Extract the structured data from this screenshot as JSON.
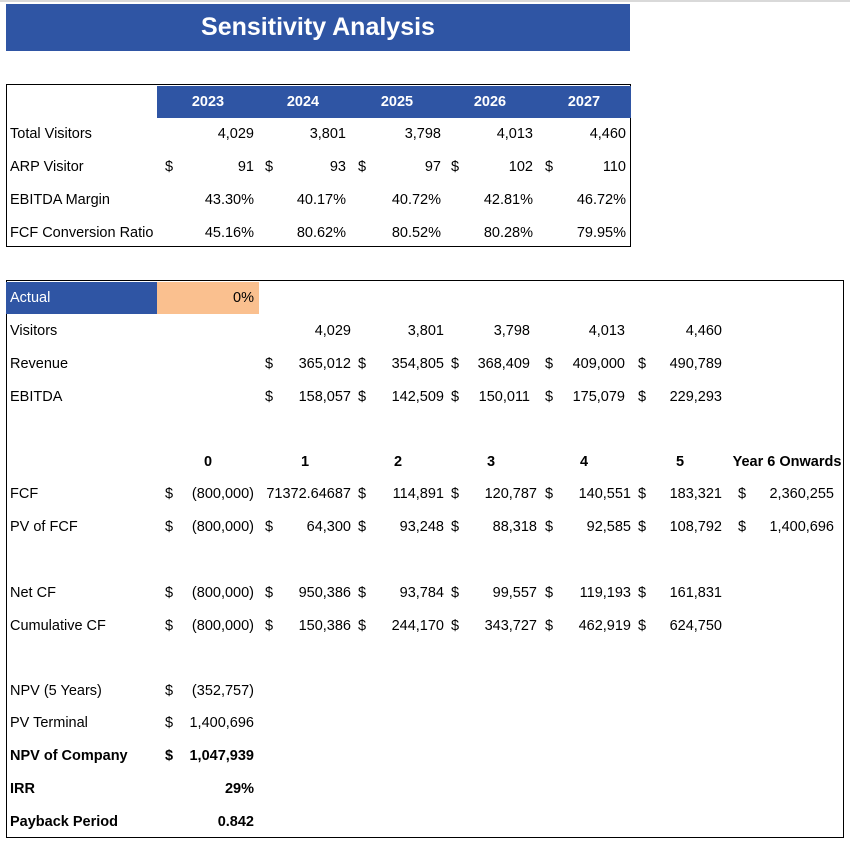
{
  "title": "Sensitivity Analysis",
  "currency": "$",
  "drivers": {
    "years": [
      "2023",
      "2024",
      "2025",
      "2026",
      "2027"
    ],
    "rows": [
      {
        "label": "Total Visitors",
        "currency": false,
        "values": [
          "4,029",
          "3,801",
          "3,798",
          "4,013",
          "4,460"
        ]
      },
      {
        "label": "ARP Visitor",
        "currency": true,
        "values": [
          "91",
          "93",
          "97",
          "102",
          "110"
        ]
      },
      {
        "label": "EBITDA Margin",
        "currency": false,
        "values": [
          "43.30%",
          "40.17%",
          "40.72%",
          "42.81%",
          "46.72%"
        ]
      },
      {
        "label": "FCF Conversion Ratio",
        "currency": false,
        "values": [
          "45.16%",
          "80.62%",
          "80.52%",
          "80.28%",
          "79.95%"
        ]
      }
    ]
  },
  "actual": {
    "label": "Actual",
    "value": "0%"
  },
  "operations": [
    {
      "label": "Visitors",
      "currency": false,
      "values": [
        "4,029",
        "3,801",
        "3,798",
        "4,013",
        "4,460"
      ]
    },
    {
      "label": "Revenue",
      "currency": true,
      "values": [
        "365,012",
        "354,805",
        "368,409",
        "409,000",
        "490,789"
      ]
    },
    {
      "label": "EBITDA",
      "currency": true,
      "values": [
        "158,057",
        "142,509",
        "150,011",
        "175,079",
        "229,293"
      ]
    }
  ],
  "periods": [
    "0",
    "1",
    "2",
    "3",
    "4",
    "5",
    "Year 6 Onwards"
  ],
  "cashflows": [
    {
      "label": "FCF",
      "values": [
        "(800,000)",
        "71372.64687",
        "114,891",
        "120,787",
        "140,551",
        "183,321",
        "2,360,255"
      ],
      "currency": [
        true,
        false,
        true,
        true,
        true,
        true,
        true
      ]
    },
    {
      "label": "PV of FCF",
      "values": [
        "(800,000)",
        "64,300",
        "93,248",
        "88,318",
        "92,585",
        "108,792",
        "1,400,696"
      ],
      "currency": [
        true,
        true,
        true,
        true,
        true,
        true,
        true
      ]
    },
    {
      "label": "Net CF",
      "values": [
        "(800,000)",
        "950,386",
        "93,784",
        "99,557",
        "119,193",
        "161,831"
      ],
      "currency": [
        true,
        true,
        true,
        true,
        true,
        true
      ]
    },
    {
      "label": "Cumulative CF",
      "values": [
        "(800,000)",
        "150,386",
        "244,170",
        "343,727",
        "462,919",
        "624,750"
      ],
      "currency": [
        true,
        true,
        true,
        true,
        true,
        true
      ]
    }
  ],
  "summary": [
    {
      "label": "NPV (5 Years)",
      "value": "(352,757)",
      "currency": true,
      "bold": false
    },
    {
      "label": "PV Terminal",
      "value": "1,400,696",
      "currency": true,
      "bold": false
    },
    {
      "label": "NPV of Company",
      "value": "1,047,939",
      "currency": true,
      "bold": true
    },
    {
      "label": "IRR",
      "value": "29%",
      "currency": false,
      "bold": true
    },
    {
      "label": "Payback Period",
      "value": "0.842",
      "currency": false,
      "bold": true
    }
  ]
}
